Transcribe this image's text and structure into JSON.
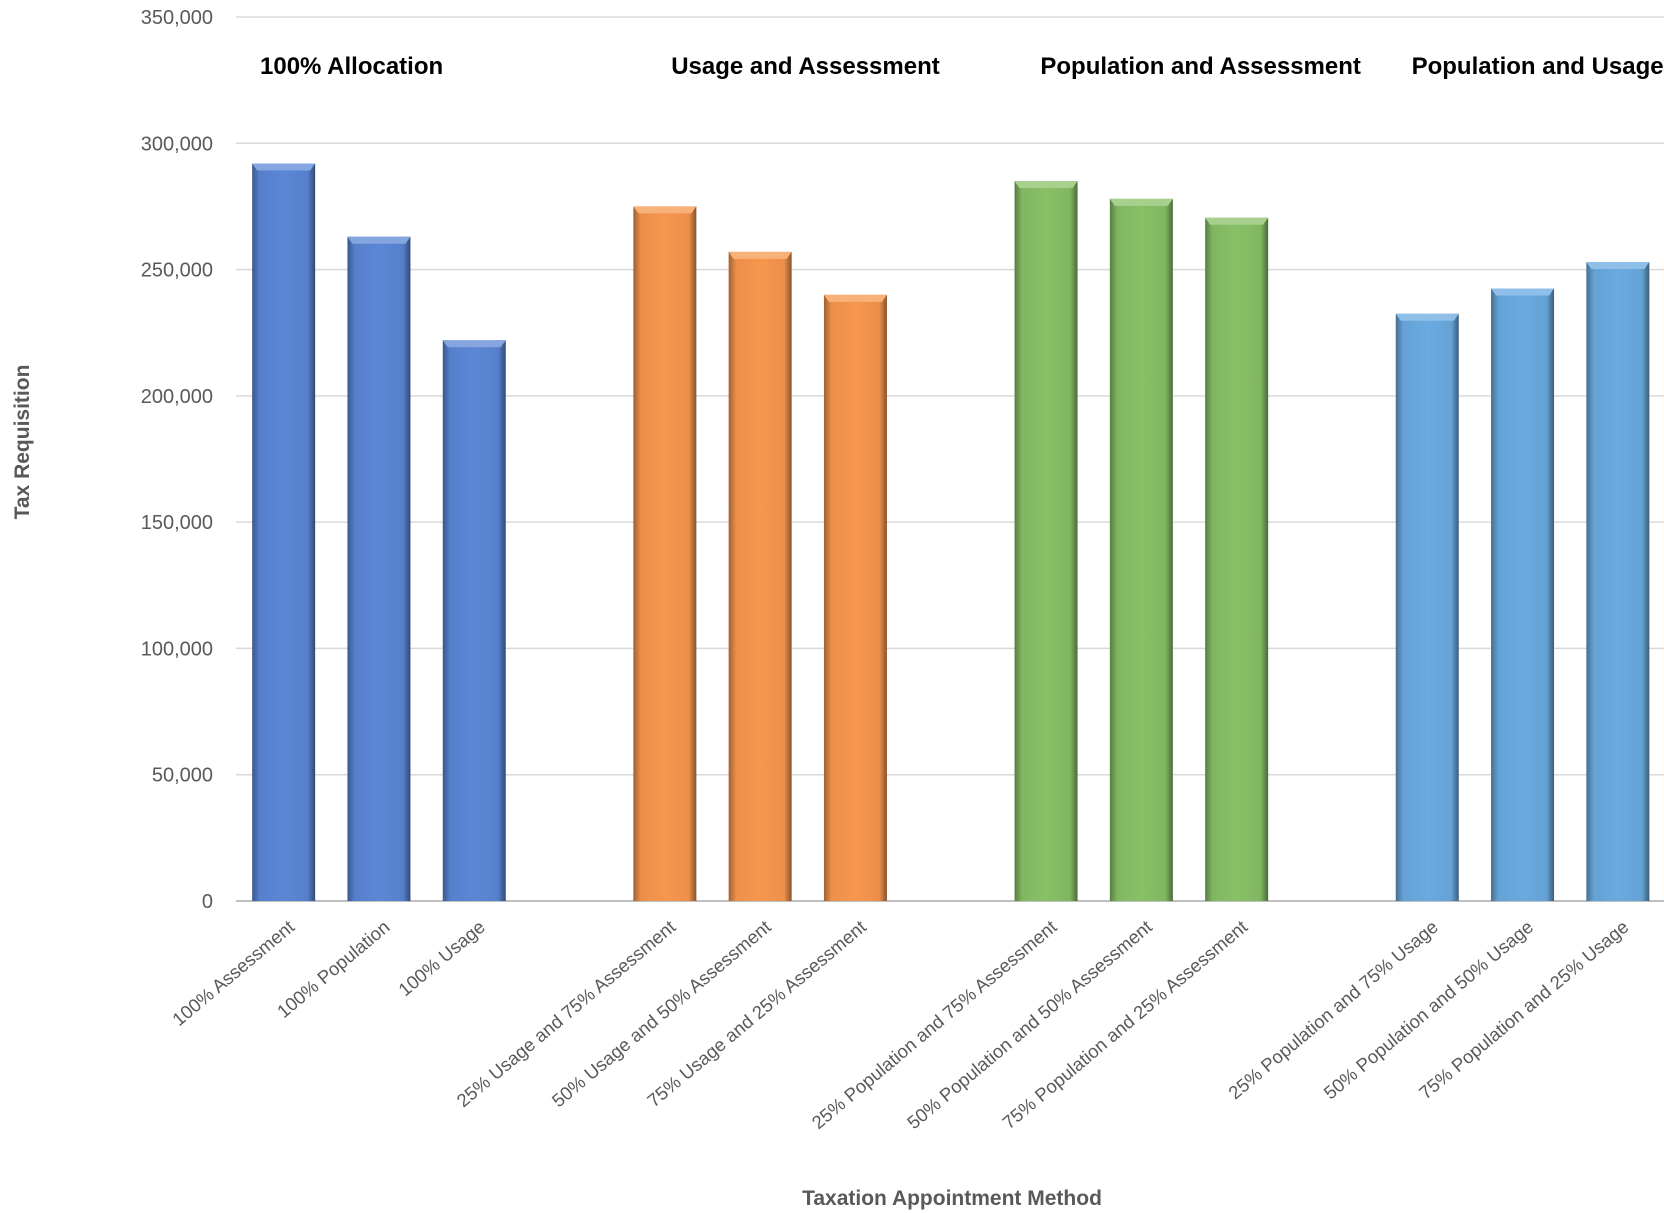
{
  "chart_data": {
    "type": "bar",
    "title": "",
    "xlabel": "Taxation Appointment Method",
    "ylabel": "Tax Requisition",
    "ylim": [
      0,
      350000
    ],
    "yticks": [
      0,
      50000,
      100000,
      150000,
      200000,
      250000,
      300000,
      350000
    ],
    "ytick_labels": [
      "0",
      "50,000",
      "100,000",
      "150,000",
      "200,000",
      "250,000",
      "300,000",
      "350,000"
    ],
    "grid": true,
    "legend": "none",
    "groups": [
      {
        "label": "100% Allocation",
        "color": "#5b87d6",
        "categories": [
          "100% Assessment",
          "100% Population",
          "100% Usage"
        ],
        "values": [
          292000,
          263000,
          222000
        ]
      },
      {
        "label": "Usage and Assessment",
        "color": "#f7974e",
        "categories": [
          "25% Usage and 75% Assessment",
          "50% Usage and 50% Assessment",
          "75% Usage and 25% Assessment"
        ],
        "values": [
          275000,
          257000,
          240000
        ]
      },
      {
        "label": "Population and Assessment",
        "color": "#88c066",
        "categories": [
          "25% Population and 75% Assessment",
          "50% Population and 50% Assessment",
          "75% Population and 25% Assessment"
        ],
        "values": [
          285000,
          278000,
          270500
        ]
      },
      {
        "label": "Population and Usage",
        "color": "#6aaae0",
        "categories": [
          "25% Population and 75% Usage",
          "50% Population and 50% Usage",
          "75% Population and 25% Usage"
        ],
        "values": [
          232500,
          242500,
          253000
        ]
      }
    ]
  }
}
